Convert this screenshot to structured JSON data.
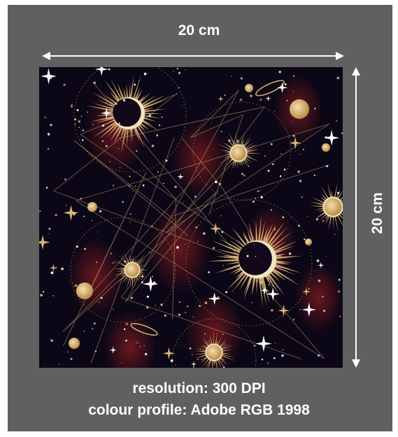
{
  "dimensions": {
    "width_label": "20 cm",
    "height_label": "20 cm"
  },
  "caption": {
    "resolution": "resolution: 300 DPI",
    "colour_profile": "colour profile: Adobe RGB 1998"
  },
  "colors": {
    "frame": "#606060",
    "pattern_background": "#0b0716",
    "gold": "#d9b574",
    "arrow": "#ffffff"
  }
}
